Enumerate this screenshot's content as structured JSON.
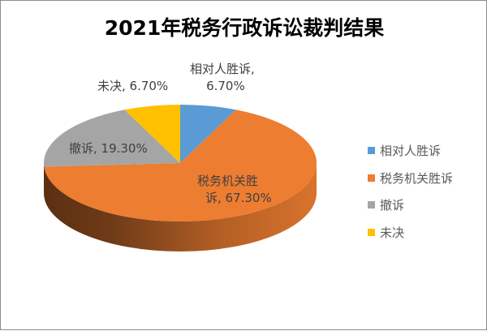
{
  "chart_data": {
    "type": "pie",
    "title": "2021年税务行政诉讼裁判结果",
    "style": "3d-pie",
    "categories": [
      "相对人胜诉",
      "税务机关胜诉",
      "撤诉",
      "未决"
    ],
    "values": [
      6.7,
      67.3,
      19.3,
      6.7
    ],
    "value_labels": [
      "6.70%",
      "67.30%",
      "19.30%",
      "6.70%"
    ],
    "colors": [
      "#5b9bd5",
      "#ed7d31",
      "#a5a5a5",
      "#ffc000"
    ],
    "legend_position": "right"
  },
  "labels": {
    "blue_line1": "相对人胜诉,",
    "blue_line2": "6.70%",
    "yellow": "未决, 6.70%",
    "grey": "撤诉, 19.30%",
    "orange_line1": "税务机关胜",
    "orange_line2": "诉, 67.30%"
  },
  "legend": {
    "items": [
      {
        "label": "相对人胜诉",
        "color": "#5b9bd5"
      },
      {
        "label": "税务机关胜诉",
        "color": "#ed7d31"
      },
      {
        "label": "撤诉",
        "color": "#a5a5a5"
      },
      {
        "label": "未决",
        "color": "#ffc000"
      }
    ]
  }
}
